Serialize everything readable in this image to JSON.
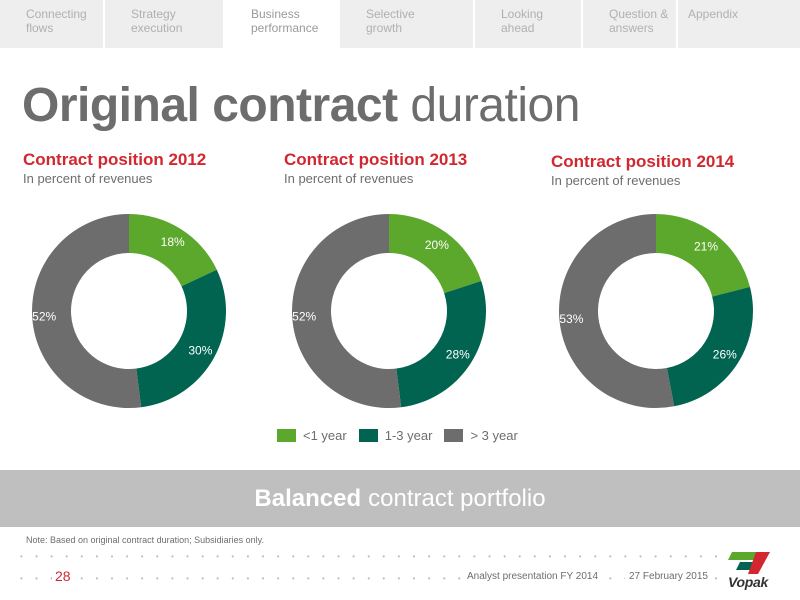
{
  "nav": {
    "tabs": [
      {
        "label": "Connecting\nflows",
        "active": false
      },
      {
        "label": "Strategy\nexecution",
        "active": false
      },
      {
        "label": "Business\nperformance",
        "active": true
      },
      {
        "label": "Selective\ngrowth",
        "active": false
      },
      {
        "label": "Looking\nahead",
        "active": false
      },
      {
        "label": "Question &\nanswers",
        "active": false
      },
      {
        "label": "Appendix",
        "active": false
      }
    ]
  },
  "title": {
    "bold": "Original contract",
    "regular": "duration"
  },
  "chart_data": [
    {
      "type": "pie",
      "title": "Contract position 2012",
      "subtitle": "In percent of revenues",
      "categories": [
        "<1 year",
        "1-3 year",
        "> 3 year"
      ],
      "values": [
        18,
        30,
        52
      ],
      "labels": [
        "18%",
        "30%",
        "52%"
      ]
    },
    {
      "type": "pie",
      "title": "Contract position 2013",
      "subtitle": "In percent of revenues",
      "categories": [
        "<1 year",
        "1-3 year",
        "> 3 year"
      ],
      "values": [
        20,
        28,
        52
      ],
      "labels": [
        "20%",
        "28%",
        "52%"
      ]
    },
    {
      "type": "pie",
      "title": "Contract position 2014",
      "subtitle": "In percent of revenues",
      "categories": [
        "<1 year",
        "1-3 year",
        "> 3 year"
      ],
      "values": [
        21,
        26,
        53
      ],
      "labels": [
        "21%",
        "26%",
        "53%"
      ]
    }
  ],
  "legend": [
    {
      "label": "<1 year",
      "color": "#5ba82c"
    },
    {
      "label": "1-3 year",
      "color": "#006450"
    },
    {
      "label": "> 3 year",
      "color": "#6d6d6d"
    }
  ],
  "colors": {
    "accent": "#d22730",
    "short": "#5ba82c",
    "mid": "#006450",
    "long": "#6d6d6d"
  },
  "banner": {
    "bold": "Balanced",
    "regular": "contract portfolio"
  },
  "footer": {
    "note": "Note: Based on original contract duration; Subsidiaries only.",
    "page_number": "28",
    "presentation": "Analyst presentation FY 2014",
    "date": "27 February 2015",
    "logo": "Vopak"
  }
}
